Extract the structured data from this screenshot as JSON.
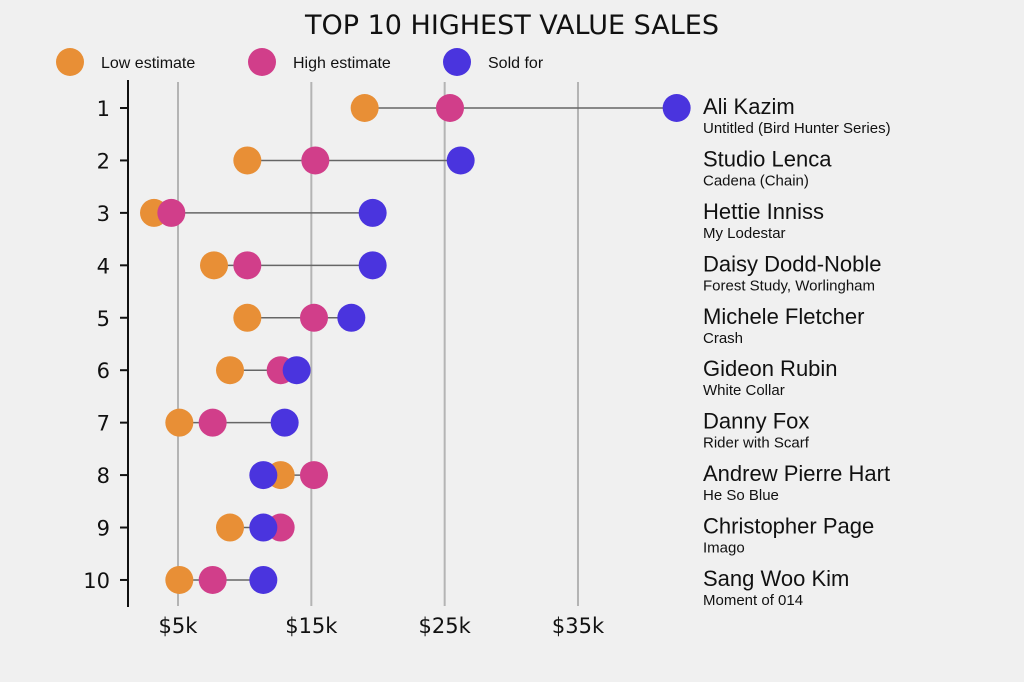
{
  "chart_data": {
    "type": "dumbbell",
    "title": "TOP 10 HIGHEST VALUE SALES",
    "xlabel": "",
    "ylabel": "",
    "xlim": [
      1.7,
      42.5
    ],
    "xticks": [
      5,
      15,
      25,
      35
    ],
    "xtick_labels": [
      "$5k",
      "$15k",
      "$25k",
      "$35k"
    ],
    "grid": "vertical",
    "legend_position": "top",
    "colors": {
      "low": "#E88F36",
      "high": "#D13E8A",
      "sold": "#4A34DE",
      "connector": "#666666",
      "grid": "#b4b4b4",
      "axis": "#111111"
    },
    "series": [
      {
        "key": "low",
        "name": "Low estimate"
      },
      {
        "key": "high",
        "name": "High estimate"
      },
      {
        "key": "sold",
        "name": "Sold for"
      }
    ],
    "rows": [
      {
        "rank": "1",
        "artist": "Ali Kazim",
        "work": "Untitled (Bird Hunter Series)",
        "low": 19.0,
        "high": 25.4,
        "sold": 42.4
      },
      {
        "rank": "2",
        "artist": "Studio Lenca",
        "work": "Cadena (Chain)",
        "low": 10.2,
        "high": 15.3,
        "sold": 26.2
      },
      {
        "rank": "3",
        "artist": "Hettie Inniss",
        "work": "My Lodestar",
        "low": 3.2,
        "high": 4.5,
        "sold": 19.6
      },
      {
        "rank": "4",
        "artist": "Daisy Dodd-Noble",
        "work": "Forest Study, Worlingham",
        "low": 7.7,
        "high": 10.2,
        "sold": 19.6
      },
      {
        "rank": "5",
        "artist": "Michele Fletcher",
        "work": "Crash",
        "low": 10.2,
        "high": 15.2,
        "sold": 18.0
      },
      {
        "rank": "6",
        "artist": "Gideon Rubin",
        "work": "White Collar",
        "low": 8.9,
        "high": 12.7,
        "sold": 13.9
      },
      {
        "rank": "7",
        "artist": "Danny Fox",
        "work": "Rider with Scarf",
        "low": 5.1,
        "high": 7.6,
        "sold": 13.0
      },
      {
        "rank": "8",
        "artist": "Andrew Pierre Hart",
        "work": "He So Blue",
        "low": 12.7,
        "high": 15.2,
        "sold": 11.4
      },
      {
        "rank": "9",
        "artist": "Christopher Page",
        "work": "Imago",
        "low": 8.9,
        "high": 12.7,
        "sold": 11.4
      },
      {
        "rank": "10",
        "artist": "Sang Woo Kim",
        "work": "Moment of 014",
        "low": 5.1,
        "high": 7.6,
        "sold": 11.4
      }
    ]
  }
}
